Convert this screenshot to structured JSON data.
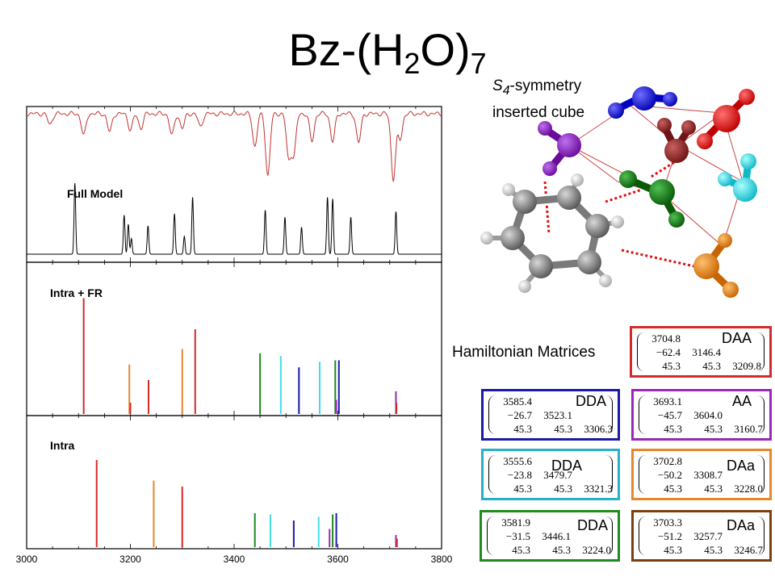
{
  "slide": {
    "title_base": "Bz-(H",
    "title_sub1": "2",
    "title_mid": "O)",
    "title_sub2": "7",
    "symmetry_s": "S",
    "symmetry_sub": "4",
    "symmetry_rest": "-symmetry",
    "symmetry_line2": "inserted cube",
    "matrices_label": "Hamiltonian Matrices"
  },
  "colors": {
    "red": "#d42a2a",
    "orange": "#e8862a",
    "teal": "#29b0c8",
    "blue": "#1a1aa8",
    "green": "#1f8a1f",
    "purple": "#9a27b8",
    "cyan": "#3fdde8",
    "darkred": "#8b2323",
    "brown": "#7a4010",
    "black": "#000000"
  },
  "chart_data": {
    "type": "line",
    "x_ticks": [
      "3000",
      "3200",
      "3400",
      "3600",
      "3800"
    ],
    "xlim": [
      3000,
      3800
    ],
    "panels": [
      {
        "label": "Full Model",
        "experimental_color": "#c33333",
        "model_peaks": [
          {
            "x": 3093,
            "h": 1.0
          },
          {
            "x": 3188,
            "h": 0.55
          },
          {
            "x": 3196,
            "h": 0.42
          },
          {
            "x": 3202,
            "h": 0.22
          },
          {
            "x": 3234,
            "h": 0.4
          },
          {
            "x": 3285,
            "h": 0.57
          },
          {
            "x": 3304,
            "h": 0.25
          },
          {
            "x": 3320,
            "h": 0.8
          },
          {
            "x": 3460,
            "h": 0.62
          },
          {
            "x": 3498,
            "h": 0.52
          },
          {
            "x": 3530,
            "h": 0.38
          },
          {
            "x": 3580,
            "h": 0.8
          },
          {
            "x": 3590,
            "h": 0.78
          },
          {
            "x": 3625,
            "h": 0.52
          },
          {
            "x": 3712,
            "h": 0.6
          }
        ],
        "experimental_dips": [
          {
            "x": 3045,
            "d": 0.15
          },
          {
            "x": 3110,
            "d": 0.3
          },
          {
            "x": 3160,
            "d": 0.25
          },
          {
            "x": 3200,
            "d": 0.22
          },
          {
            "x": 3220,
            "d": 0.2
          },
          {
            "x": 3280,
            "d": 0.3
          },
          {
            "x": 3300,
            "d": 0.2
          },
          {
            "x": 3335,
            "d": 0.18
          },
          {
            "x": 3440,
            "d": 0.45
          },
          {
            "x": 3465,
            "d": 0.85
          },
          {
            "x": 3505,
            "d": 0.6
          },
          {
            "x": 3515,
            "d": 0.55
          },
          {
            "x": 3550,
            "d": 0.38
          },
          {
            "x": 3590,
            "d": 0.38
          },
          {
            "x": 3640,
            "d": 0.4
          },
          {
            "x": 3707,
            "d": 0.9
          },
          {
            "x": 3720,
            "d": 0.35
          }
        ]
      },
      {
        "label": "Intra + FR",
        "sticks": [
          {
            "x": 3110,
            "h": 0.82,
            "c": "#d42a2a"
          },
          {
            "x": 3198,
            "h": 0.35,
            "c": "#e8862a"
          },
          {
            "x": 3200,
            "h": 0.08,
            "c": "#d42a2a"
          },
          {
            "x": 3235,
            "h": 0.24,
            "c": "#d42a2a"
          },
          {
            "x": 3300,
            "h": 0.46,
            "c": "#e8862a"
          },
          {
            "x": 3325,
            "h": 0.6,
            "c": "#d42a2a"
          },
          {
            "x": 3450,
            "h": 0.43,
            "c": "#1f8a1f"
          },
          {
            "x": 3490,
            "h": 0.41,
            "c": "#3fdde8"
          },
          {
            "x": 3525,
            "h": 0.33,
            "c": "#1a1aa8"
          },
          {
            "x": 3565,
            "h": 0.37,
            "c": "#3fdde8"
          },
          {
            "x": 3595,
            "h": 0.38,
            "c": "#1f8a1f"
          },
          {
            "x": 3602,
            "h": 0.38,
            "c": "#1a1aa8"
          },
          {
            "x": 3597,
            "h": 0.1,
            "c": "#9a27b8"
          },
          {
            "x": 3712,
            "h": 0.16,
            "c": "#9a27b8"
          },
          {
            "x": 3713,
            "h": 0.08,
            "c": "#d42a2a"
          }
        ]
      },
      {
        "label": "Intra",
        "sticks": [
          {
            "x": 3135,
            "h": 0.72,
            "c": "#d42a2a"
          },
          {
            "x": 3245,
            "h": 0.55,
            "c": "#e8862a"
          },
          {
            "x": 3300,
            "h": 0.5,
            "c": "#d42a2a"
          },
          {
            "x": 3440,
            "h": 0.28,
            "c": "#1f8a1f"
          },
          {
            "x": 3470,
            "h": 0.27,
            "c": "#3fdde8"
          },
          {
            "x": 3515,
            "h": 0.22,
            "c": "#1a1aa8"
          },
          {
            "x": 3563,
            "h": 0.25,
            "c": "#3fdde8"
          },
          {
            "x": 3584,
            "h": 0.15,
            "c": "#9a27b8"
          },
          {
            "x": 3590,
            "h": 0.27,
            "c": "#1f8a1f"
          },
          {
            "x": 3597,
            "h": 0.28,
            "c": "#1a1aa8"
          },
          {
            "x": 3712,
            "h": 0.1,
            "c": "#9a27b8"
          },
          {
            "x": 3714,
            "h": 0.07,
            "c": "#d42a2a"
          }
        ]
      }
    ]
  },
  "matrices": [
    {
      "tag": "DAA",
      "color": "#d42a2a",
      "r1": [
        "3704.8",
        "",
        ""
      ],
      "r2": [
        "−62.4",
        "3146.4",
        ""
      ],
      "r3": [
        "45.3",
        "45.3",
        "3209.8"
      ]
    },
    {
      "tag": "DDA",
      "color": "#1a1aa8",
      "r1": [
        "3585.4",
        "",
        ""
      ],
      "r2": [
        "−26.7",
        "3523.1",
        ""
      ],
      "r3": [
        "45.3",
        "45.3",
        "3306.3"
      ]
    },
    {
      "tag": "AA",
      "color": "#9a27b8",
      "r1": [
        "3693.1",
        "",
        ""
      ],
      "r2": [
        "−45.7",
        "3604.0",
        ""
      ],
      "r3": [
        "45.3",
        "45.3",
        "3160.7"
      ]
    },
    {
      "tag": "DDA",
      "color": "#29b0c8",
      "r1": [
        "3555.6",
        "",
        ""
      ],
      "r2": [
        "−23.8",
        "3479.7",
        ""
      ],
      "r3": [
        "45.3",
        "45.3",
        "3321.3"
      ]
    },
    {
      "tag": "DAa",
      "color": "#e8862a",
      "r1": [
        "3702.8",
        "",
        ""
      ],
      "r2": [
        "−50.2",
        "3308.7",
        ""
      ],
      "r3": [
        "45.3",
        "45.3",
        "3228.0"
      ]
    },
    {
      "tag": "DDA",
      "color": "#1f8a1f",
      "r1": [
        "3581.9",
        "",
        ""
      ],
      "r2": [
        "−31.5",
        "3446.1",
        ""
      ],
      "r3": [
        "45.3",
        "45.3",
        "3224.0"
      ]
    },
    {
      "tag": "DAa",
      "color": "#7a4010",
      "r1": [
        "3703.3",
        "",
        ""
      ],
      "r2": [
        "−51.2",
        "3257.7",
        ""
      ],
      "r3": [
        "45.3",
        "45.3",
        "3246.7"
      ]
    }
  ]
}
